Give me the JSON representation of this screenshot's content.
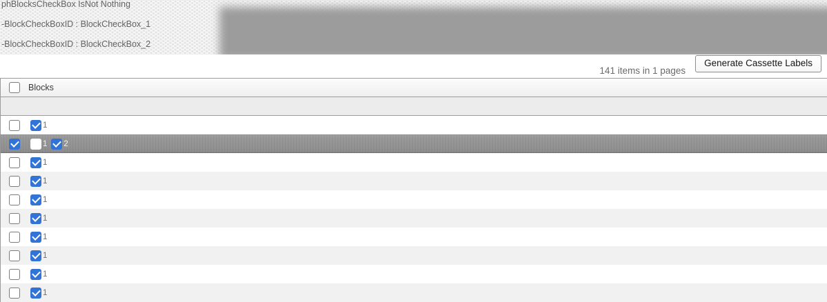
{
  "debug_panel": {
    "lines": [
      "phBlocksCheckBox IsNot Nothing",
      "-BlockCheckBoxID : BlockCheckBox_1",
      "-BlockCheckBoxID : BlockCheckBox_2"
    ]
  },
  "toolbar": {
    "pager_text": "141 items in 1 pages",
    "generate_button_label": "Generate Cassette Labels"
  },
  "table": {
    "columns": [
      {
        "label": "Blocks"
      }
    ],
    "header_checkbox_checked": false,
    "rows": [
      {
        "selected": false,
        "checked": false,
        "blocks": [
          {
            "label": "1",
            "checked": true
          }
        ]
      },
      {
        "selected": true,
        "checked": true,
        "blocks": [
          {
            "label": "1",
            "checked": false
          },
          {
            "label": "2",
            "checked": true
          }
        ]
      },
      {
        "selected": false,
        "checked": false,
        "blocks": [
          {
            "label": "1",
            "checked": true
          }
        ]
      },
      {
        "selected": false,
        "checked": false,
        "blocks": [
          {
            "label": "1",
            "checked": true
          }
        ]
      },
      {
        "selected": false,
        "checked": false,
        "blocks": [
          {
            "label": "1",
            "checked": true
          }
        ]
      },
      {
        "selected": false,
        "checked": false,
        "blocks": [
          {
            "label": "1",
            "checked": true
          }
        ]
      },
      {
        "selected": false,
        "checked": false,
        "blocks": [
          {
            "label": "1",
            "checked": true
          }
        ]
      },
      {
        "selected": false,
        "checked": false,
        "blocks": [
          {
            "label": "1",
            "checked": true
          }
        ]
      },
      {
        "selected": false,
        "checked": false,
        "blocks": [
          {
            "label": "1",
            "checked": true
          }
        ]
      },
      {
        "selected": false,
        "checked": false,
        "blocks": [
          {
            "label": "1",
            "checked": true
          }
        ]
      }
    ]
  },
  "colors": {
    "checkbox_accent": "#3273d6",
    "selected_row_bg": "#949494",
    "alt_row_bg": "#f1f1f1",
    "grid_border": "#9b9b9b"
  }
}
